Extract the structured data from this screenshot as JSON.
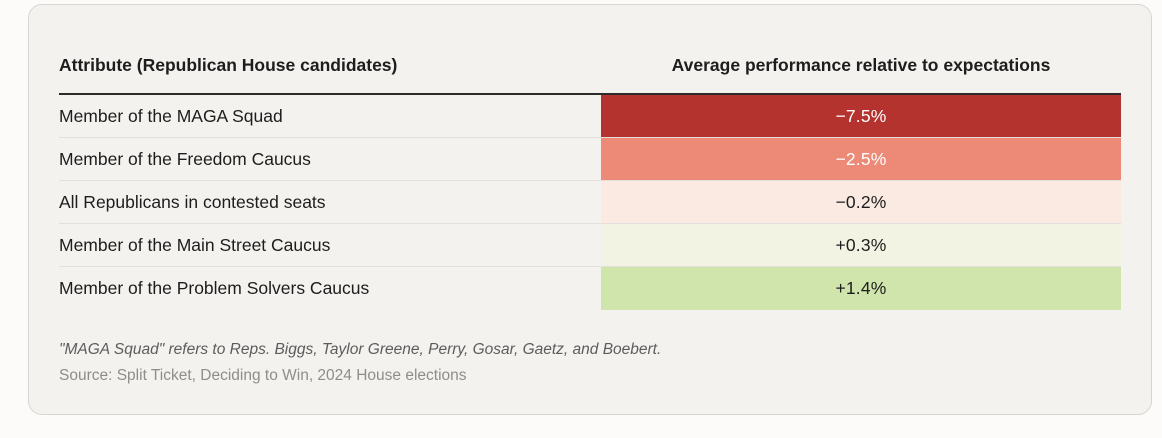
{
  "colors": {
    "page_bg": "#fcfbfa",
    "card_bg": "#f4f2ef",
    "card_border": "#d8d5d1",
    "header_rule": "#2b2b2b",
    "text_dark": "#1d1d1d",
    "footnote_text": "#5c5c5c",
    "source_text": "#8f8c89"
  },
  "table": {
    "header": {
      "attribute": "Attribute (Republican House candidates)",
      "value": "Average performance relative to expectations"
    },
    "rows": [
      {
        "label": "Member of the MAGA Squad",
        "value": "−7.5%",
        "bg": "#b5332f",
        "fg": "#ffffff"
      },
      {
        "label": "Member of the Freedom Caucus",
        "value": "−2.5%",
        "bg": "#ec8977",
        "fg": "#ffffff"
      },
      {
        "label": "All Republicans in contested seats",
        "value": "−0.2%",
        "bg": "#faeae2",
        "fg": "#1d1d1d"
      },
      {
        "label": "Member of the Main Street Caucus",
        "value": "+0.3%",
        "bg": "#f2f3e3",
        "fg": "#1d1d1d"
      },
      {
        "label": "Member of the Problem Solvers Caucus",
        "value": "+1.4%",
        "bg": "#d0e5ab",
        "fg": "#1d1d1d"
      }
    ]
  },
  "footnote": "\"MAGA Squad\" refers to Reps. Biggs, Taylor Greene, Perry, Gosar, Gaetz, and Boebert.",
  "source": "Source: Split Ticket, Deciding to Win, 2024 House elections",
  "chart_data": {
    "type": "table",
    "title": "",
    "columns": [
      "Attribute (Republican House candidates)",
      "Average performance relative to expectations"
    ],
    "categories": [
      "Member of the MAGA Squad",
      "Member of the Freedom Caucus",
      "All Republicans in contested seats",
      "Member of the Main Street Caucus",
      "Member of the Problem Solvers Caucus"
    ],
    "values": [
      -7.5,
      -2.5,
      -0.2,
      0.3,
      1.4
    ],
    "value_labels": [
      "−7.5%",
      "−2.5%",
      "−0.2%",
      "+0.3%",
      "+1.4%"
    ],
    "cell_colors": [
      "#b5332f",
      "#ec8977",
      "#faeae2",
      "#f2f3e3",
      "#d0e5ab"
    ],
    "color_encoding": "diverging red-to-green heatmap on value column",
    "footnote": "\"MAGA Squad\" refers to Reps. Biggs, Taylor Greene, Perry, Gosar, Gaetz, and Boebert.",
    "source": "Source: Split Ticket, Deciding to Win, 2024 House elections"
  }
}
